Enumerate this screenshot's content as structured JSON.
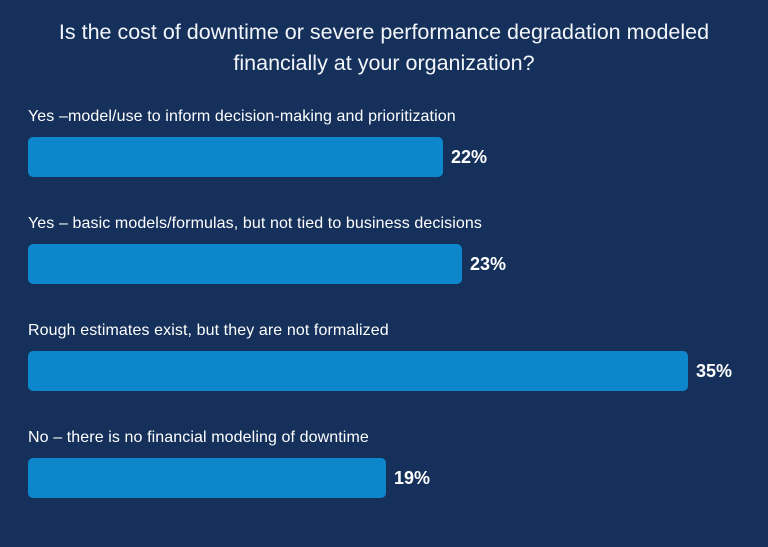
{
  "chart_data": {
    "type": "bar",
    "orientation": "horizontal",
    "title": "Is the cost of downtime or severe performance degradation modeled financially at your organization?",
    "categories": [
      "Yes –model/use to inform decision-making and prioritization",
      "Yes – basic models/formulas, but not tied to business decisions",
      "Rough estimates exist, but they are not formalized",
      "No – there is no financial modeling of downtime"
    ],
    "values": [
      22,
      23,
      35,
      19
    ],
    "value_labels": [
      "22%",
      "23%",
      "35%",
      "19%"
    ],
    "unit": "%",
    "grid": false,
    "legend": false,
    "axes_visible": false,
    "colors": {
      "bar": "#0e86cc",
      "background": "#15305a",
      "text": "#ffffff"
    }
  }
}
